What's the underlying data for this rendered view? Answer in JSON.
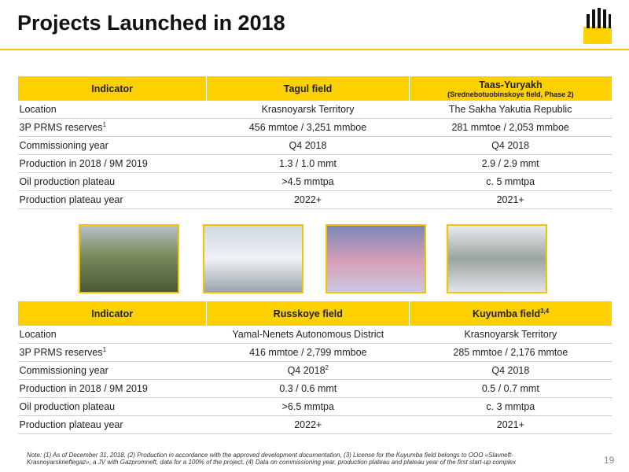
{
  "header": {
    "title": "Projects Launched in 2018"
  },
  "table1": {
    "header": [
      "Indicator",
      "Tagul field",
      {
        "text": "Taas-Yuryakh",
        "sub": "(Srednebotuobinskoye field, Phase 2)"
      }
    ],
    "rows": [
      [
        "Location",
        "Krasnoyarsk Territory",
        "The Sakha Yakutia Republic"
      ],
      [
        {
          "text": "3P PRMS reserves",
          "sup": "1"
        },
        "456 mmtoe / 3,251 mmboe",
        "281 mmtoe / 2,053 mmboe"
      ],
      [
        "Commissioning year",
        "Q4 2018",
        "Q4 2018"
      ],
      [
        "Production in 2018 / 9M 2019",
        "1.3 / 1.0 mmt",
        "2.9 / 2.9 mmt"
      ],
      [
        "Oil production plateau",
        ">4.5 mmtpa",
        "c. 5 mmtpa"
      ],
      [
        "Production plateau year",
        "2022+",
        "2021+"
      ]
    ]
  },
  "table2": {
    "header": [
      "Indicator",
      "Russkoye field",
      {
        "text": "Kuyumba field",
        "sup": "3,4"
      }
    ],
    "rows": [
      [
        "Location",
        "Yamal-Nenets Autonomous District",
        "Krasnoyarsk Territory"
      ],
      [
        {
          "text": "3P PRMS reserves",
          "sup": "1"
        },
        "416 mmtoe / 2,799 mmboe",
        "285 mmtoe / 2,176 mmtoe"
      ],
      [
        "Commissioning year",
        {
          "text": "Q4 2018",
          "sup": "2"
        },
        "Q4 2018"
      ],
      [
        "Production in 2018 / 9M 2019",
        "0.3 / 0.6 mmt",
        "0.5 / 0.7 mmt"
      ],
      [
        "Oil production plateau",
        ">6.5 mmtpa",
        "c. 3 mmtpa"
      ],
      [
        "Production plateau year",
        "2022+",
        "2021+"
      ]
    ]
  },
  "footer": {
    "note": "Note: (1) As of December 31, 2018, (2) Production in accordance with the approved development documentation, (3) License for the Kuyumba field belongs to OOO «Slavneft-Krasnoyarskneftegaz», a JV with Gazpromneft, data for a 100% of the project, (4) Data on commissioning year, production plateau and plateau year of the first start-up complex",
    "page": "19"
  }
}
